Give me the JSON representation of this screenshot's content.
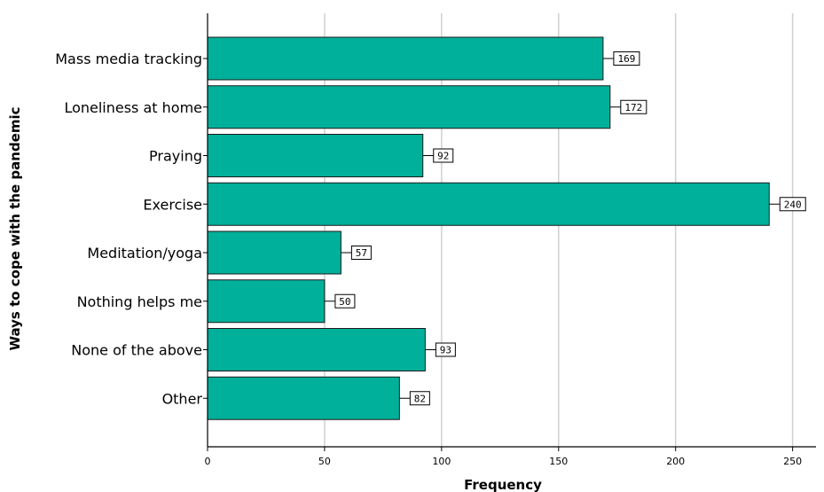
{
  "chart_data": {
    "type": "bar",
    "orientation": "horizontal",
    "categories": [
      "Mass media tracking",
      "Loneliness at home",
      "Praying",
      "Exercise",
      "Meditation/yoga",
      "Nothing helps me",
      "None of the above",
      "Other"
    ],
    "values": [
      169,
      172,
      92,
      240,
      57,
      50,
      93,
      82
    ],
    "value_labels": [
      "169",
      "172",
      "92",
      "240",
      "57",
      "50",
      "93",
      "82"
    ],
    "xlabel": "Frequency",
    "ylabel": "Ways to cope with the pandemic",
    "xlim": [
      0,
      260
    ],
    "xticks": [
      0,
      50,
      100,
      150,
      200,
      250
    ],
    "xtick_labels": [
      "0",
      "50",
      "100",
      "150",
      "200",
      "250"
    ],
    "grid": "vertical",
    "bar_color": "#00b09a",
    "bar_edge_color": "#1a1a1a"
  }
}
